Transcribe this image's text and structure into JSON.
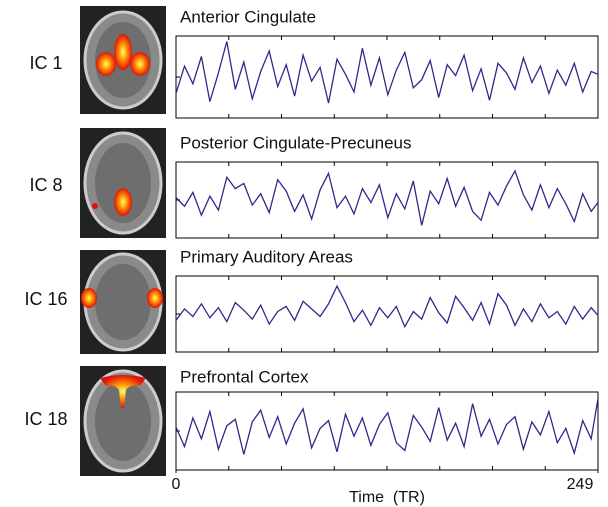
{
  "chart_data": [
    {
      "type": "line",
      "label": "IC 1",
      "title": "Anterior Cingulate",
      "color": "#2e2a8c",
      "xlim": [
        0,
        249
      ],
      "ylim": [
        -3,
        3
      ],
      "x": [
        0,
        5,
        10,
        15,
        20,
        25,
        30,
        35,
        40,
        45,
        50,
        55,
        60,
        65,
        70,
        75,
        80,
        85,
        90,
        95,
        100,
        105,
        110,
        115,
        120,
        125,
        130,
        135,
        140,
        145,
        150,
        155,
        160,
        165,
        170,
        175,
        180,
        185,
        190,
        195,
        200,
        205,
        210,
        215,
        220,
        225,
        230,
        235,
        240,
        245,
        249
      ],
      "values": [
        -1.2,
        0.8,
        -0.5,
        1.5,
        -1.8,
        0.3,
        2.6,
        -0.9,
        1.1,
        -1.6,
        0.4,
        1.9,
        -0.7,
        0.9,
        -1.4,
        1.6,
        -0.3,
        0.7,
        -1.9,
        1.3,
        0.2,
        -1.1,
        2.1,
        -0.6,
        1.4,
        -1.3,
        0.5,
        1.8,
        -0.8,
        -0.2,
        1.2,
        -1.5,
        0.9,
        0.1,
        1.6,
        -1.0,
        0.6,
        -1.7,
        1.0,
        0.3,
        -0.9,
        1.4,
        -0.4,
        0.8,
        -1.2,
        0.5,
        -0.6,
        1.0,
        -1.1,
        0.4,
        0.2
      ]
    },
    {
      "type": "line",
      "label": "IC 8",
      "title": "Posterior Cingulate-Precuneus",
      "color": "#2e2a8c",
      "xlim": [
        0,
        249
      ],
      "ylim": [
        -3,
        3
      ],
      "x": [
        0,
        5,
        10,
        15,
        20,
        25,
        30,
        35,
        40,
        45,
        50,
        55,
        60,
        65,
        70,
        75,
        80,
        85,
        90,
        95,
        100,
        105,
        110,
        115,
        120,
        125,
        130,
        135,
        140,
        145,
        150,
        155,
        160,
        165,
        170,
        175,
        180,
        185,
        190,
        195,
        200,
        205,
        210,
        215,
        220,
        225,
        230,
        235,
        240,
        245,
        249
      ],
      "values": [
        0.2,
        -0.5,
        0.6,
        -1.2,
        0.3,
        -0.8,
        1.8,
        0.9,
        1.3,
        -0.4,
        0.5,
        -1.0,
        1.6,
        0.7,
        -0.9,
        0.4,
        -1.5,
        0.8,
        2.1,
        -0.6,
        0.3,
        -1.1,
        0.9,
        -0.2,
        1.2,
        -1.4,
        0.5,
        -0.7,
        1.5,
        -2.0,
        0.7,
        -0.3,
        1.7,
        -0.5,
        1.0,
        -0.9,
        -1.6,
        0.6,
        -0.4,
        1.1,
        2.3,
        0.4,
        -0.8,
        1.2,
        -0.6,
        0.9,
        -0.3,
        -1.7,
        0.5,
        -0.9,
        -0.2
      ]
    },
    {
      "type": "line",
      "label": "IC 16",
      "title": "Primary Auditory Areas",
      "color": "#2e2a8c",
      "xlim": [
        0,
        249
      ],
      "ylim": [
        -3,
        3
      ],
      "x": [
        0,
        5,
        10,
        15,
        20,
        25,
        30,
        35,
        40,
        45,
        50,
        55,
        60,
        65,
        70,
        75,
        80,
        85,
        90,
        95,
        100,
        105,
        110,
        115,
        120,
        125,
        130,
        135,
        140,
        145,
        150,
        155,
        160,
        165,
        170,
        175,
        180,
        185,
        190,
        195,
        200,
        205,
        210,
        215,
        220,
        225,
        230,
        235,
        240,
        245,
        249
      ],
      "values": [
        -0.5,
        0.4,
        -0.2,
        0.8,
        -0.3,
        0.5,
        -0.6,
        0.9,
        0.3,
        -0.4,
        0.7,
        -0.8,
        0.2,
        0.6,
        -0.5,
        1.0,
        0.4,
        -0.2,
        0.8,
        2.2,
        0.9,
        -0.6,
        0.3,
        -0.9,
        0.5,
        -0.3,
        0.6,
        -1.0,
        0.2,
        -0.4,
        1.3,
        0.1,
        -0.7,
        1.4,
        0.5,
        -0.5,
        0.9,
        -0.8,
        1.6,
        0.7,
        -0.9,
        0.4,
        -0.6,
        0.8,
        -0.3,
        0.2,
        -0.8,
        0.6,
        -0.4,
        0.5,
        -0.1
      ]
    },
    {
      "type": "line",
      "label": "IC 18",
      "title": "Prefrontal Cortex",
      "color": "#2e2a8c",
      "xlim": [
        0,
        249
      ],
      "ylim": [
        -3,
        3
      ],
      "xticks": [
        0,
        249
      ],
      "xlabel": "Time  (TR)",
      "x": [
        0,
        5,
        10,
        15,
        20,
        25,
        30,
        35,
        40,
        45,
        50,
        55,
        60,
        65,
        70,
        75,
        80,
        85,
        90,
        95,
        100,
        105,
        110,
        115,
        120,
        125,
        130,
        135,
        140,
        145,
        150,
        155,
        160,
        165,
        170,
        175,
        180,
        185,
        190,
        195,
        200,
        205,
        210,
        215,
        220,
        225,
        230,
        235,
        240,
        245,
        249
      ],
      "values": [
        0.3,
        -1.2,
        1.0,
        -0.6,
        1.5,
        -1.4,
        0.4,
        0.9,
        -1.8,
        0.7,
        1.6,
        -0.5,
        1.1,
        -1.0,
        0.6,
        1.7,
        -1.3,
        0.2,
        0.8,
        -1.6,
        1.3,
        -0.4,
        1.0,
        -1.1,
        0.5,
        1.4,
        -0.9,
        -1.5,
        1.2,
        0.3,
        -0.8,
        1.8,
        -0.7,
        0.6,
        -1.2,
        2.1,
        -0.4,
        0.9,
        -1.0,
        0.5,
        1.1,
        -1.4,
        0.7,
        -0.3,
        1.5,
        -0.9,
        0.2,
        -1.7,
        0.8,
        -0.6,
        2.5
      ]
    }
  ]
}
